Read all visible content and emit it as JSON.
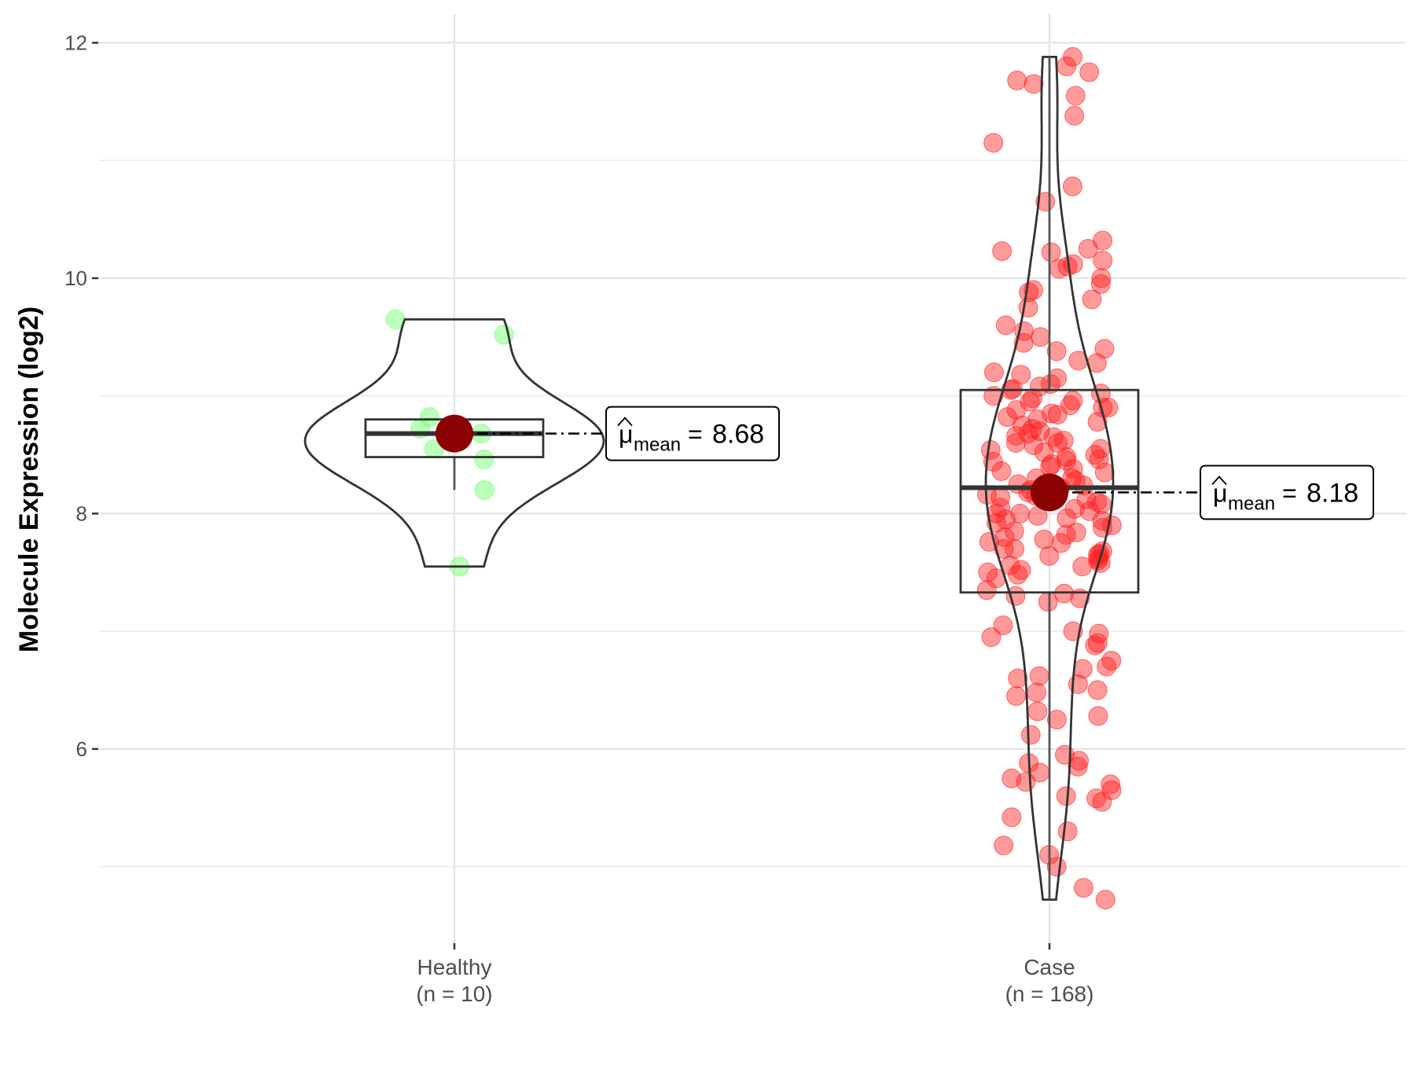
{
  "chart_data": {
    "type": "violin",
    "y_label": "Molecule Expression (log2)",
    "ylim": [
      4.35,
      12.25
    ],
    "yticks": [
      6,
      8,
      10,
      12
    ],
    "y_minor_grid": [
      5,
      7,
      9,
      11
    ],
    "grid": true,
    "mean_symbol": "μ",
    "mean_subscript": "mean",
    "mean_equals": "=",
    "groups": [
      {
        "name": "Healthy",
        "n_label": "(n = 10)",
        "color": "#66ff66",
        "mean": 8.68,
        "box": {
          "whisker_low": 8.2,
          "q1": 8.48,
          "median": 8.68,
          "q3": 8.8,
          "whisker_high": 8.82
        },
        "values": [
          9.65,
          9.52,
          8.82,
          8.72,
          8.68,
          8.66,
          8.55,
          8.46,
          8.2,
          7.55
        ]
      },
      {
        "name": "Case",
        "n_label": "(n = 168)",
        "color": "#ff2020",
        "mean": 8.18,
        "box": {
          "whisker_low": 4.72,
          "q1": 7.33,
          "median": 8.22,
          "q3": 9.05,
          "whisker_high": 11.88
        },
        "values": [
          11.88,
          11.8,
          11.75,
          11.68,
          11.65,
          11.55,
          11.38,
          11.15,
          10.78,
          10.65,
          10.32,
          10.25,
          10.23,
          10.22,
          10.15,
          10.12,
          10.1,
          10.08,
          10.0,
          9.95,
          9.9,
          9.88,
          9.82,
          9.75,
          9.6,
          9.55,
          9.5,
          9.45,
          9.4,
          9.38,
          9.3,
          9.28,
          9.2,
          9.18,
          9.15,
          9.1,
          9.08,
          9.05,
          9.02,
          9.0,
          8.98,
          8.95,
          8.92,
          8.9,
          8.85,
          8.82,
          8.8,
          8.75,
          8.72,
          8.7,
          8.68,
          8.65,
          8.62,
          8.6,
          8.55,
          8.52,
          8.5,
          8.48,
          8.45,
          8.42,
          8.4,
          8.38,
          8.35,
          8.3,
          8.28,
          8.25,
          8.22,
          8.2,
          8.18,
          8.15,
          8.12,
          8.1,
          8.05,
          8.02,
          8.0,
          7.98,
          7.95,
          7.92,
          7.9,
          7.85,
          7.82,
          7.8,
          7.78,
          7.75,
          7.7,
          7.68,
          7.65,
          7.62,
          7.6,
          7.58,
          7.55,
          7.52,
          7.5,
          7.48,
          7.45,
          7.35,
          7.32,
          7.3,
          7.28,
          7.25,
          8.96,
          8.88,
          8.78,
          8.66,
          8.58,
          8.46,
          8.36,
          8.26,
          8.16,
          8.08,
          7.96,
          7.88,
          7.76,
          7.66,
          7.56,
          8.9,
          8.6,
          8.3,
          8.0,
          7.7,
          9.06,
          8.84,
          8.44,
          8.24,
          8.04,
          7.84,
          7.64,
          8.54,
          8.14,
          7.94,
          7.05,
          7.0,
          6.98,
          6.95,
          6.9,
          6.88,
          6.75,
          6.7,
          6.68,
          6.62,
          6.6,
          6.55,
          6.5,
          6.48,
          6.45,
          6.32,
          6.28,
          6.25,
          6.12,
          5.95,
          5.9,
          5.88,
          5.85,
          5.8,
          5.75,
          5.72,
          5.7,
          5.65,
          5.6,
          5.58,
          5.55,
          5.42,
          5.3,
          5.18,
          5.1,
          5.0,
          4.82,
          4.72
        ]
      }
    ]
  }
}
